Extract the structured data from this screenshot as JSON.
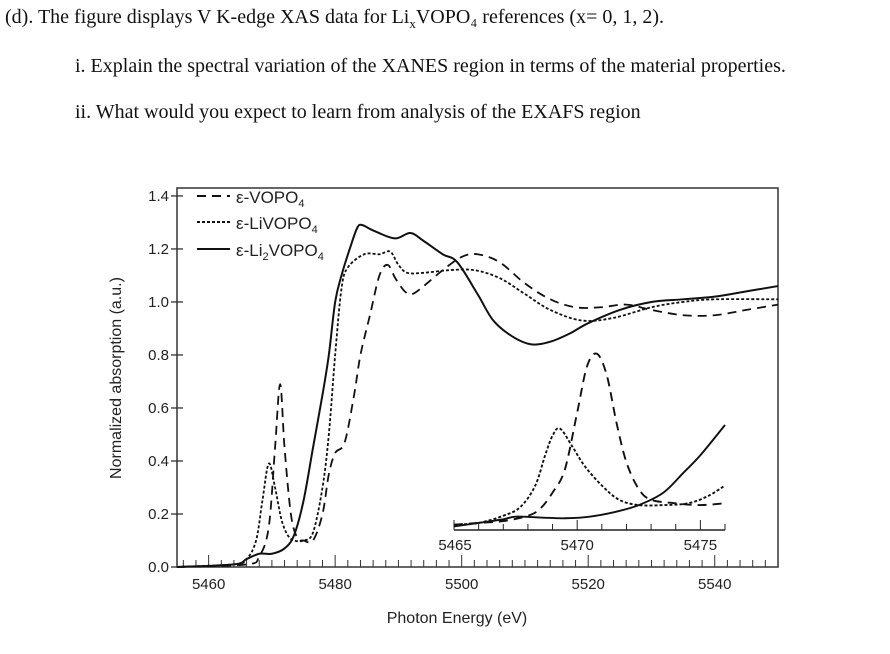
{
  "question": {
    "intro_prefix": "(d). The figure displays V K-edge XAS data for Li",
    "intro_sub": "x",
    "intro_suffix": "VOPO₄ references (x= 0, 1, 2).",
    "item_i": "i. Explain the spectral variation of the XANES region in terms of the material properties.",
    "item_ii": "ii. What would you expect to learn from analysis of the EXAFS region"
  },
  "chart_data": {
    "type": "line",
    "xlabel": "Photon Energy (eV)",
    "ylabel": "Normalized absorption (a.u.)",
    "xlim": [
      5455,
      5550
    ],
    "ylim": [
      0,
      1.43
    ],
    "xticks": [
      5460,
      5480,
      5500,
      5520,
      5540
    ],
    "xtick_labels": [
      "5460",
      "5480",
      "5500",
      "5520",
      "5540"
    ],
    "yticks": [
      0.0,
      0.2,
      0.4,
      0.6,
      0.8,
      1.0,
      1.2,
      1.4
    ],
    "ytick_labels": [
      "0.0",
      "0.2",
      "0.4",
      "0.6",
      "0.8",
      "1.0",
      "1.2",
      "1.4"
    ],
    "grid": false,
    "legend_position": "top-left",
    "series": [
      {
        "name": "ε-VOPO",
        "name_sub": "4",
        "style": "dashed",
        "x": [
          5455,
          5466,
          5468,
          5469.5,
          5470.5,
          5471.3,
          5472,
          5473,
          5474,
          5475,
          5476.5,
          5478,
          5479,
          5480,
          5481.5,
          5483,
          5484,
          5485.5,
          5487,
          5488.3,
          5489.5,
          5491,
          5492.2,
          5494,
          5497,
          5500,
          5502.5,
          5506,
          5510,
          5514,
          5518,
          5522,
          5526,
          5530,
          5535,
          5540,
          5545,
          5550
        ],
        "y": [
          0,
          0.01,
          0.04,
          0.15,
          0.45,
          0.69,
          0.45,
          0.2,
          0.11,
          0.1,
          0.1,
          0.2,
          0.35,
          0.43,
          0.47,
          0.65,
          0.8,
          0.95,
          1.1,
          1.14,
          1.09,
          1.04,
          1.03,
          1.06,
          1.12,
          1.17,
          1.18,
          1.15,
          1.07,
          1.01,
          0.98,
          0.98,
          0.99,
          0.97,
          0.95,
          0.95,
          0.97,
          0.99
        ]
      },
      {
        "name": "ε-LiVOPO",
        "name_sub": "4",
        "style": "dotted",
        "x": [
          5455,
          5464,
          5466,
          5467.5,
          5468.5,
          5469.5,
          5470.5,
          5471.5,
          5472.5,
          5473.5,
          5475,
          5476.5,
          5478,
          5479,
          5480,
          5481,
          5482,
          5484.6,
          5487,
          5488.7,
          5490,
          5491.4,
          5494,
          5498,
          5502,
          5506,
          5510,
          5514,
          5519,
          5524,
          5530,
          5535,
          5540,
          5550
        ],
        "y": [
          0,
          0.01,
          0.03,
          0.1,
          0.25,
          0.39,
          0.3,
          0.18,
          0.12,
          0.1,
          0.1,
          0.13,
          0.3,
          0.5,
          0.8,
          1.05,
          1.13,
          1.18,
          1.18,
          1.19,
          1.14,
          1.11,
          1.11,
          1.12,
          1.12,
          1.09,
          1.03,
          0.97,
          0.93,
          0.94,
          0.98,
          1.0,
          1.01,
          1.01
        ]
      },
      {
        "name": "ε-Li",
        "name_mid": "2",
        "name_tail": "VOPO",
        "name_sub": "4",
        "style": "solid",
        "x": [
          5455,
          5464,
          5466,
          5468,
          5470,
          5472,
          5473.5,
          5475,
          5476.5,
          5478,
          5479,
          5480,
          5481,
          5482.3,
          5483.5,
          5484.3,
          5486,
          5489.4,
          5491.9,
          5494,
          5497,
          5499.3,
          5502.5,
          5505,
          5508,
          5511,
          5514,
          5517,
          5520,
          5525,
          5530,
          5535,
          5540,
          5545,
          5550
        ],
        "y": [
          0,
          0.01,
          0.03,
          0.05,
          0.05,
          0.07,
          0.12,
          0.25,
          0.45,
          0.65,
          0.8,
          1.0,
          1.1,
          1.2,
          1.28,
          1.29,
          1.27,
          1.24,
          1.26,
          1.23,
          1.18,
          1.15,
          1.03,
          0.93,
          0.87,
          0.84,
          0.85,
          0.88,
          0.92,
          0.97,
          1.0,
          1.01,
          1.02,
          1.04,
          1.06
        ]
      }
    ],
    "inset": {
      "xlim": [
        5465,
        5476
      ],
      "xticks": [
        5465,
        5470,
        5475
      ],
      "xtick_labels": [
        "5465",
        "5470",
        "5475"
      ],
      "series": [
        {
          "style": "dashed",
          "x": [
            5465,
            5466,
            5467,
            5468,
            5468.5,
            5469,
            5469.5,
            5470,
            5470.4,
            5470.8,
            5471.2,
            5471.6,
            5472,
            5472.5,
            5473,
            5474,
            5475,
            5476
          ],
          "y": [
            0.03,
            0.04,
            0.05,
            0.08,
            0.12,
            0.21,
            0.34,
            0.66,
            0.92,
            0.99,
            0.87,
            0.6,
            0.38,
            0.23,
            0.17,
            0.15,
            0.14,
            0.15
          ]
        },
        {
          "style": "dotted",
          "x": [
            5465,
            5466,
            5467,
            5467.7,
            5468.3,
            5468.7,
            5469,
            5469.3,
            5469.8,
            5470.3,
            5471,
            5471.7,
            5472.5,
            5473.5,
            5474.5,
            5475.3,
            5476
          ],
          "y": [
            0.03,
            0.04,
            0.08,
            0.13,
            0.25,
            0.42,
            0.53,
            0.57,
            0.47,
            0.36,
            0.25,
            0.17,
            0.14,
            0.14,
            0.15,
            0.19,
            0.25
          ]
        },
        {
          "style": "solid",
          "x": [
            5465,
            5466,
            5467,
            5467.5,
            5468.5,
            5469.5,
            5470.5,
            5471.5,
            5472.5,
            5473.5,
            5474.3,
            5475,
            5476
          ],
          "y": [
            0.02,
            0.04,
            0.06,
            0.075,
            0.07,
            0.066,
            0.075,
            0.1,
            0.14,
            0.21,
            0.32,
            0.42,
            0.59
          ]
        }
      ]
    }
  }
}
